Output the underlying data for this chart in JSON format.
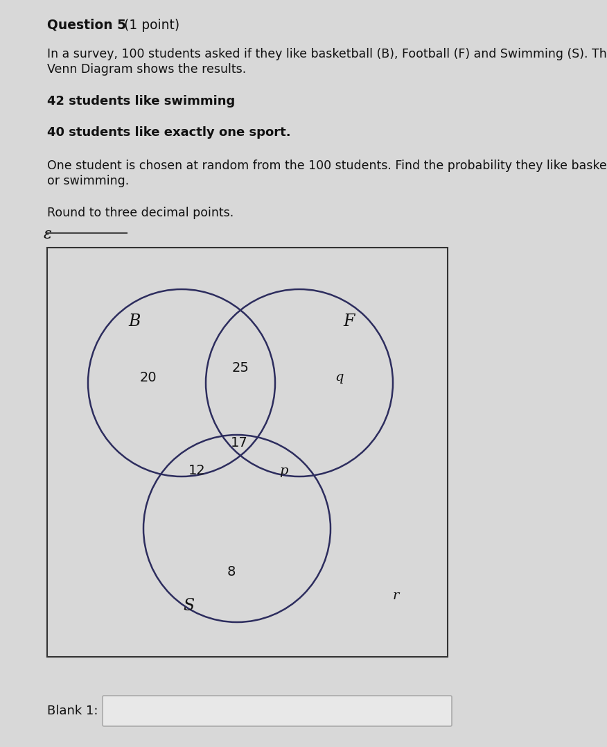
{
  "title": "Question 5 (1 point)",
  "background_color": "#d8d8d8",
  "content_bg": "#d8d8d8",
  "text_color": "#111111",
  "paragraph1_line1": "In a survey, 100 students asked if they like basketball (B), Football (F) and Swimming (S). The",
  "paragraph1_line2": "Venn Diagram shows the results.",
  "bullet1": "42 students like swimming",
  "bullet2": "40 students like exactly one sport.",
  "bullet3_line1": "One student is chosen at random from the 100 students. Find the probability they like basketball",
  "bullet3_line2": "or swimming.",
  "bullet4": "Round to three decimal points.",
  "venn_label_B": "B",
  "venn_label_F": "F",
  "venn_label_S": "S",
  "venn_label_epsilon": "&",
  "value_B_only": "20",
  "value_BF": "25",
  "value_F_only": "q",
  "value_BFS": "17",
  "value_BS": "12",
  "value_FS": "p",
  "value_S_only": "8",
  "value_r": "r",
  "circle_color": "#2d2d5e",
  "circle_linewidth": 1.8,
  "blank1_label": "Blank 1:",
  "line_color": "#444444",
  "venn_box_edge": "#333333",
  "venn_box_face": "#d8d8d8",
  "blank_box_edge": "#aaaaaa",
  "blank_box_face": "#e8e8e8"
}
